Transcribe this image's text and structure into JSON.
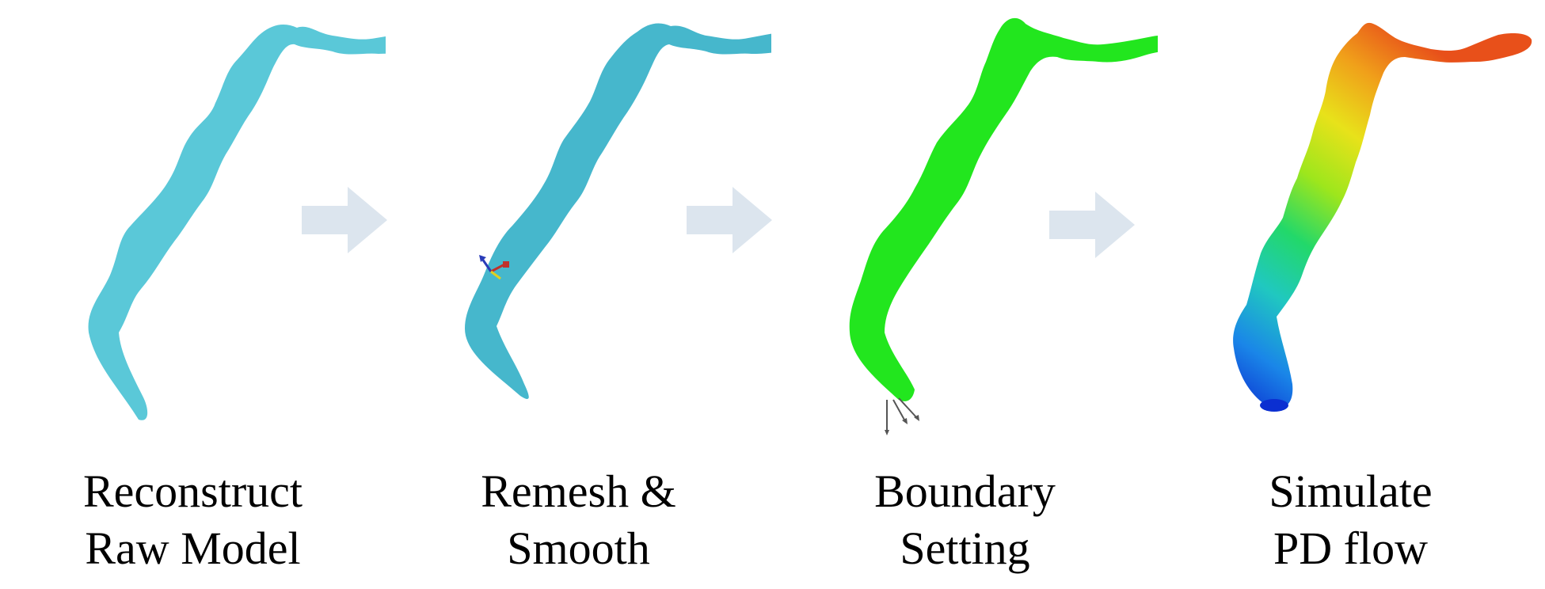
{
  "steps": [
    {
      "line1": "Reconstruct",
      "line2": "Raw Model",
      "color": "#5ac8d8"
    },
    {
      "line1": "Remesh &",
      "line2": "Smooth",
      "color": "#46b7cc"
    },
    {
      "line1": "Boundary",
      "line2": "Setting",
      "color": "#22e61e"
    },
    {
      "line1": "Simulate",
      "line2": "PD flow",
      "gradient": [
        "#0b2fd1",
        "#1a86e8",
        "#20c8c0",
        "#22d86a",
        "#9ee61c",
        "#e8e21a",
        "#f0a01a",
        "#e8501a"
      ]
    }
  ],
  "arrow_color": "#dce5ee",
  "axis_icons": {
    "x": "red-axis-arrow",
    "y": "yellow-axis-arrow",
    "z": "blue-axis-arrow"
  },
  "outlet_arrow_color": "#555555"
}
